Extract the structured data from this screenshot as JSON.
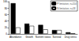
{
  "chart_data": {
    "type": "bar",
    "categories": [
      "Abundance",
      "Growth",
      "Nutrient status",
      "Survival",
      "Drug stress"
    ],
    "series": [
      {
        "name": "P limitation, n=104",
        "color": "#000000",
        "values": [
          95,
          32,
          28,
          12,
          5
        ]
      },
      {
        "name": "N limitation, n=58",
        "color": "#ffffff",
        "values": [
          20,
          25,
          14,
          12,
          2
        ]
      }
    ],
    "ylim": [
      0,
      100
    ],
    "yticks": [
      0,
      20,
      40,
      60,
      80,
      100
    ],
    "legend": "top-right",
    "grid": false
  }
}
